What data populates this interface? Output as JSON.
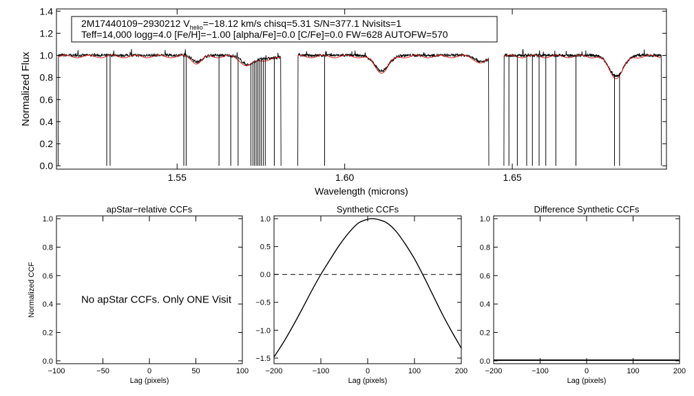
{
  "chart_data": [
    {
      "type": "line",
      "id": "spectrum",
      "title": "",
      "xlabel": "Wavelength (microns)",
      "ylabel": "Normalized Flux",
      "xlim": [
        1.514,
        1.696
      ],
      "ylim": [
        -0.03,
        1.42
      ],
      "xticks": [
        1.55,
        1.6,
        1.65
      ],
      "xtick_labels": [
        "1.55",
        "1.60",
        "1.65"
      ],
      "yticks": [
        0.0,
        0.2,
        0.4,
        0.6,
        0.8,
        1.0,
        1.2,
        1.4
      ],
      "ytick_labels": [
        "0.0",
        "0.2",
        "0.4",
        "0.6",
        "0.8",
        "1.0",
        "1.2",
        "1.4"
      ],
      "annotation": {
        "star": "2M17440109−2930212",
        "vhelio_symbol": "V",
        "vhelio_subscript": "helio",
        "line1_rest": "=−18.12 km/s  chisq=5.31  S/N=377.1  Nvisits=1",
        "line2": "Teff=14,000 logg=4.0 [Fe/H]=−1.00 [alpha/Fe]=0.0 [C/Fe]=0.0 FW=628 AUTOFW=570"
      },
      "chips": [
        [
          1.5145,
          1.581
        ],
        [
          1.586,
          1.643
        ],
        [
          1.6475,
          1.6945
        ]
      ],
      "absorption_features": [
        {
          "center": 1.556,
          "depth": 0.06,
          "width": 0.002
        },
        {
          "center": 1.571,
          "depth": 0.07,
          "width": 0.0025
        },
        {
          "center": 1.576,
          "depth": 0.03,
          "width": 0.006
        },
        {
          "center": 1.611,
          "depth": 0.14,
          "width": 0.003
        },
        {
          "center": 1.641,
          "depth": 0.06,
          "width": 0.0025
        },
        {
          "center": 1.681,
          "depth": 0.19,
          "width": 0.003
        }
      ],
      "bad_pixel_dropouts": [
        1.529,
        1.53,
        1.552,
        1.5527,
        1.5625,
        1.566,
        1.5682,
        1.572,
        1.5726,
        1.5731,
        1.5736,
        1.5741,
        1.5746,
        1.5751,
        1.5757,
        1.5763,
        1.579,
        1.594,
        1.649,
        1.6515,
        1.6543,
        1.656,
        1.658,
        1.66,
        1.663,
        1.669,
        1.6805,
        1.682
      ],
      "series": [
        {
          "name": "observed spectrum",
          "color": "#000000"
        },
        {
          "name": "best-fit model",
          "color": "#e0201b"
        }
      ]
    },
    {
      "type": "line",
      "id": "apstar_ccf",
      "title": "apStar−relative CCFs",
      "xlabel": "Lag (pixels)",
      "ylabel": "Normalized CCF",
      "xlim": [
        -100,
        100
      ],
      "ylim": [
        -0.02,
        1.02
      ],
      "xticks": [
        -100,
        -50,
        0,
        50,
        100
      ],
      "xtick_labels": [
        "−100",
        "−50",
        "0",
        "50",
        "100"
      ],
      "yticks": [
        0.0,
        0.2,
        0.4,
        0.6,
        0.8,
        1.0
      ],
      "ytick_labels": [
        "0.0",
        "0.2",
        "0.4",
        "0.6",
        "0.8",
        "1.0"
      ],
      "message": "No apStar CCFs.  Only ONE Visit",
      "series": []
    },
    {
      "type": "line",
      "id": "synthetic_ccf",
      "title": "Synthetic CCFs",
      "xlabel": "Lag (pixels)",
      "ylabel": "",
      "xlim": [
        -200,
        200
      ],
      "ylim": [
        -1.6,
        1.05
      ],
      "xticks": [
        -200,
        -100,
        0,
        100,
        200
      ],
      "xtick_labels": [
        "−200",
        "−100",
        "0",
        "100",
        "200"
      ],
      "yticks": [
        -1.5,
        -1.0,
        -0.5,
        0.0,
        0.5,
        1.0
      ],
      "ytick_labels": [
        "−1.5",
        "−1.0",
        "−0.5",
        "0.0",
        "0.5",
        "1.0"
      ],
      "zero_line": 0.0,
      "series": [
        {
          "name": "synthetic CCF",
          "color": "#000000",
          "x": [
            -200,
            -180,
            -160,
            -140,
            -120,
            -100,
            -80,
            -60,
            -40,
            -20,
            0,
            10,
            20,
            40,
            60,
            80,
            100,
            120,
            140,
            160,
            180,
            200
          ],
          "y": [
            -1.48,
            -1.22,
            -0.93,
            -0.62,
            -0.3,
            0.0,
            0.27,
            0.53,
            0.75,
            0.92,
            0.99,
            1.0,
            0.99,
            0.93,
            0.78,
            0.55,
            0.28,
            -0.04,
            -0.38,
            -0.72,
            -1.03,
            -1.32
          ]
        }
      ]
    },
    {
      "type": "line",
      "id": "difference_ccf",
      "title": "Difference Synthetic CCFs",
      "xlabel": "Lag (pixels)",
      "ylabel": "",
      "xlim": [
        -200,
        200
      ],
      "ylim": [
        -0.02,
        1.02
      ],
      "xticks": [
        -200,
        -100,
        0,
        100,
        200
      ],
      "xtick_labels": [
        "−200",
        "−100",
        "0",
        "100",
        "200"
      ],
      "yticks": [
        0.0,
        0.2,
        0.4,
        0.6,
        0.8,
        1.0
      ],
      "ytick_labels": [
        "0.0",
        "0.2",
        "0.4",
        "0.6",
        "0.8",
        "1.0"
      ],
      "series": [
        {
          "name": "difference CCF",
          "color": "#000000",
          "x": [
            -200,
            200
          ],
          "y": [
            0.0,
            0.0
          ]
        }
      ]
    }
  ]
}
